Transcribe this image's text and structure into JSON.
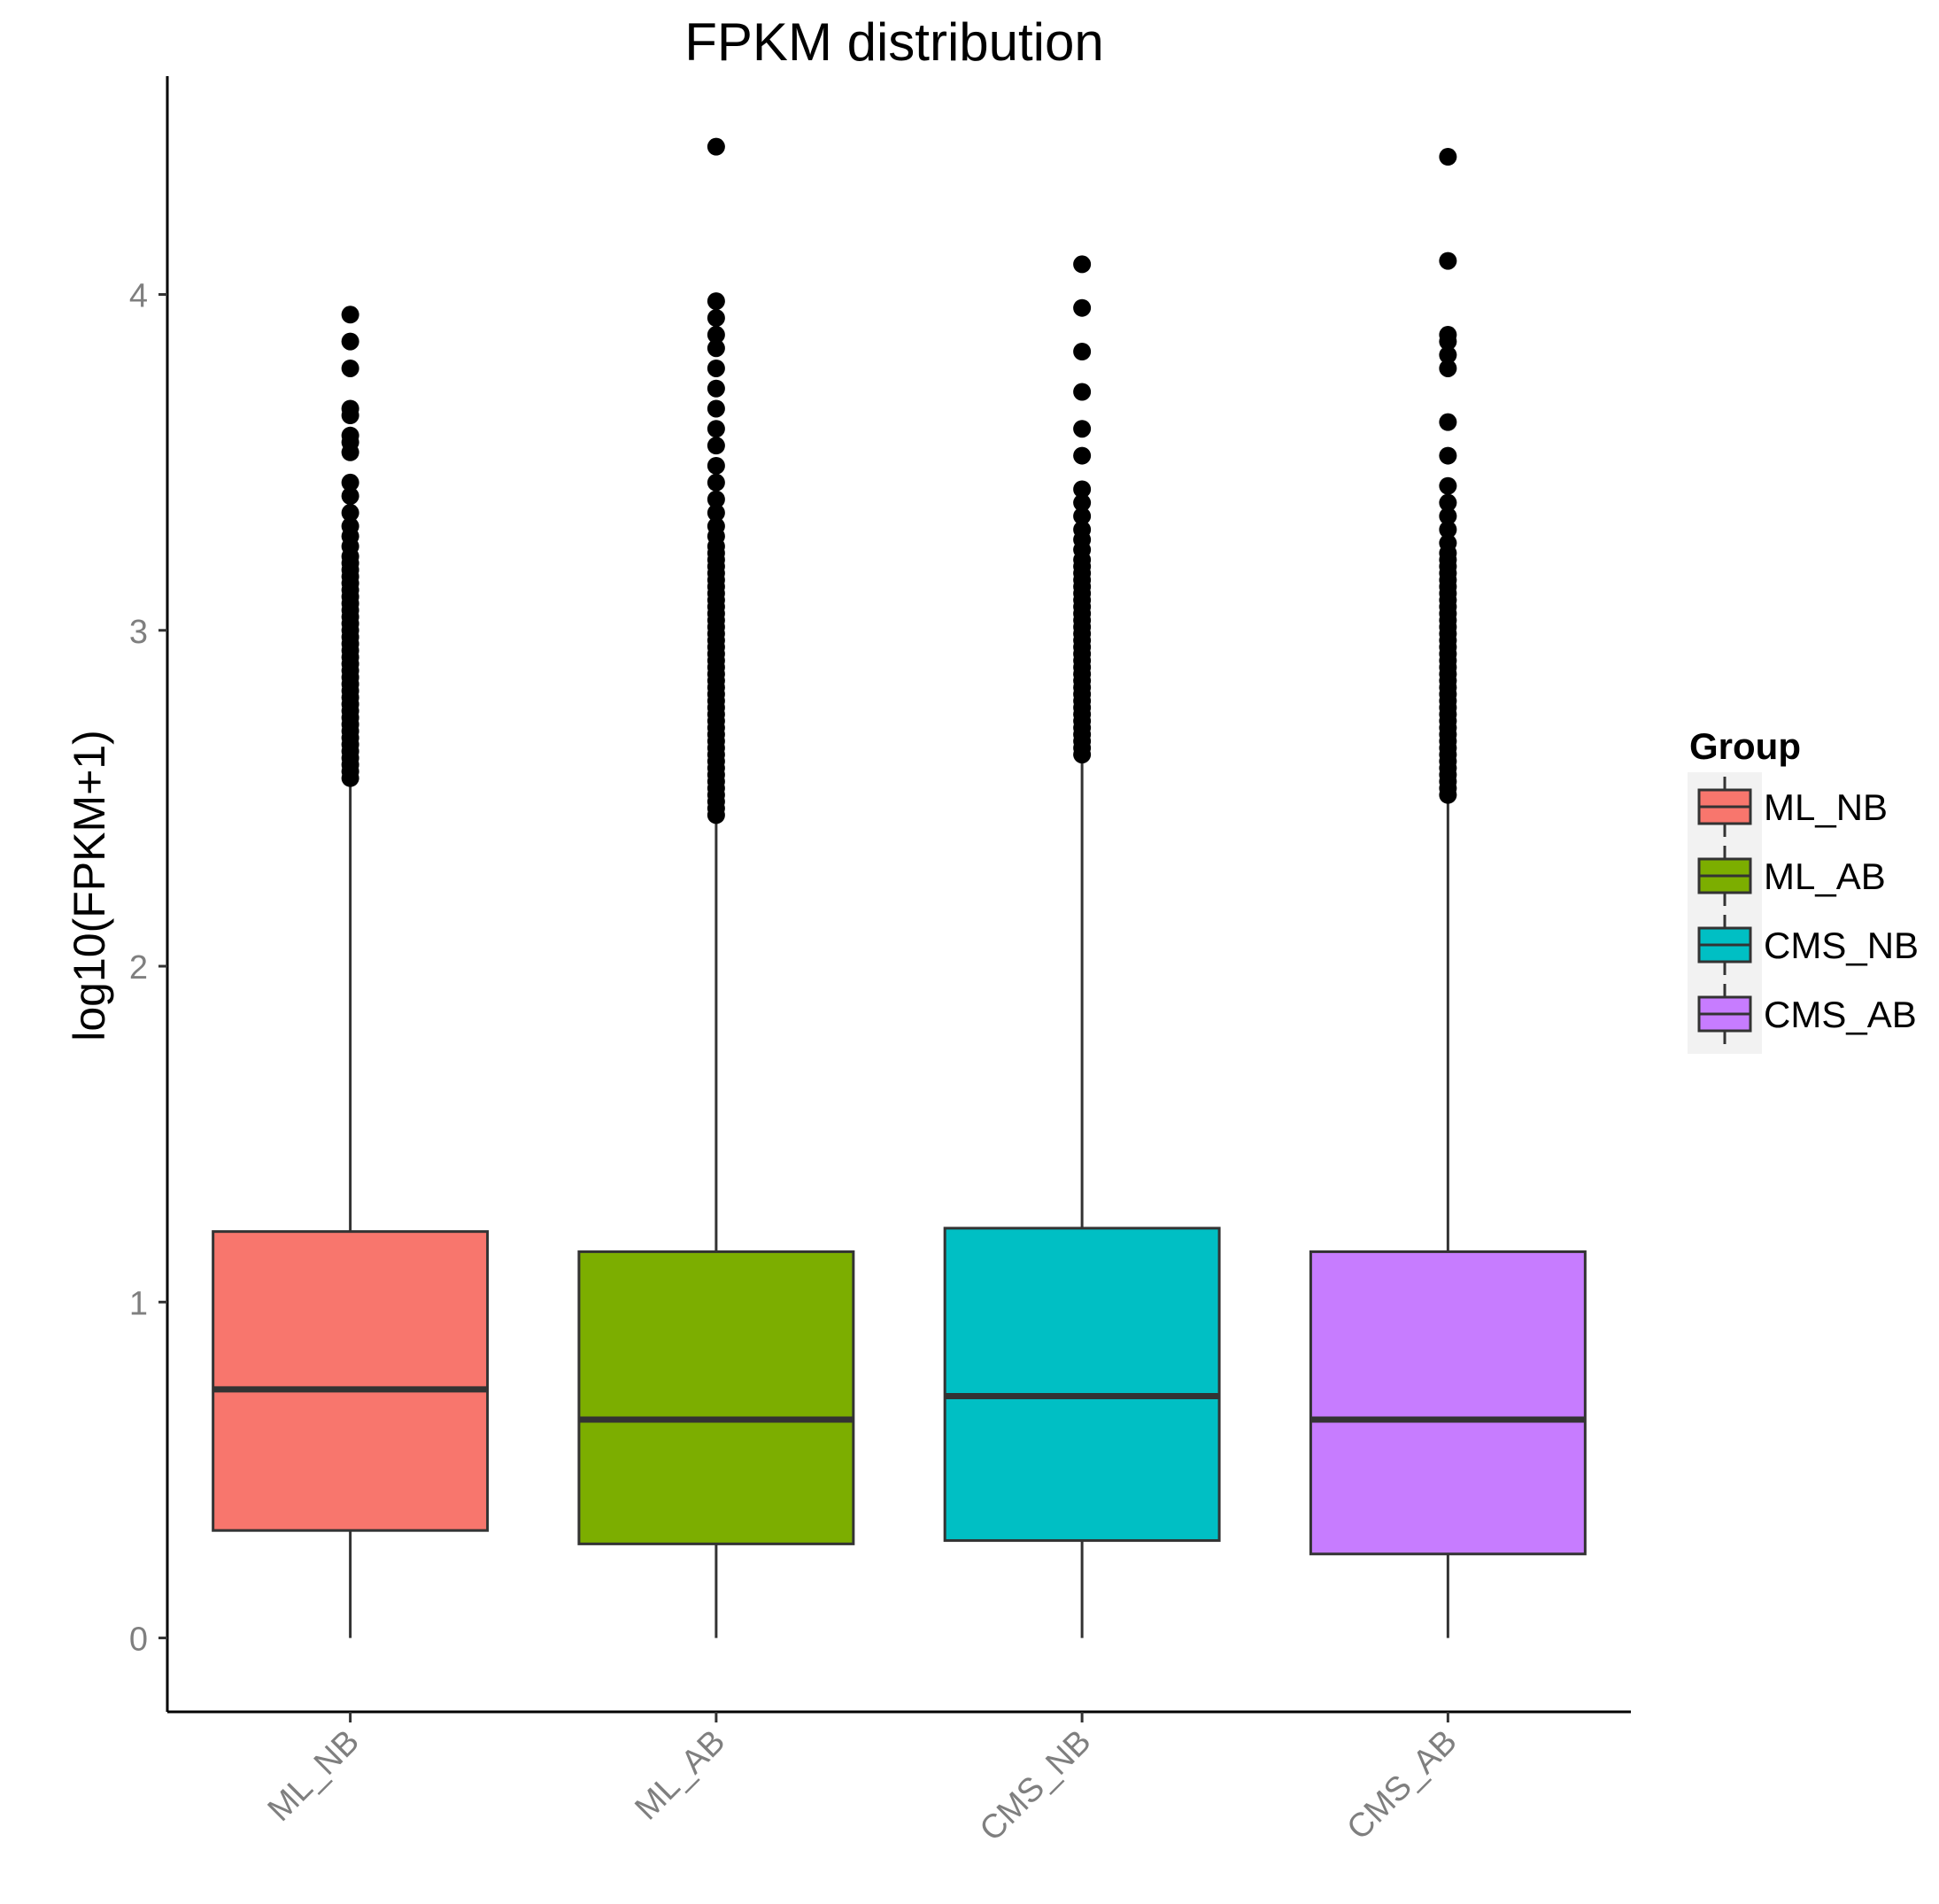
{
  "chart_data": {
    "type": "boxplot",
    "title": "FPKM distribution",
    "xlabel": "",
    "ylabel": "log10(FPKM+1)",
    "ylim": [
      -0.22,
      4.65
    ],
    "yticks": [
      0,
      1,
      2,
      3,
      4
    ],
    "ytick_labels": [
      "0",
      "1",
      "2",
      "3",
      "4"
    ],
    "grid": false,
    "legend": {
      "title": "Group",
      "placement": "right",
      "entries": [
        "ML_NB",
        "ML_AB",
        "CMS_NB",
        "CMS_AB"
      ]
    },
    "categories": [
      "ML_NB",
      "ML_AB",
      "CMS_NB",
      "CMS_AB"
    ],
    "colors": [
      "#f8766d",
      "#7cae00",
      "#00bfc4",
      "#c77cff"
    ],
    "series": [
      {
        "name": "ML_NB",
        "whisker_low": 0.0,
        "q1": 0.32,
        "median": 0.74,
        "q3": 1.21,
        "whisker_high": 2.55,
        "outliers": [
          2.56,
          2.58,
          2.6,
          2.62,
          2.64,
          2.66,
          2.68,
          2.7,
          2.72,
          2.74,
          2.76,
          2.78,
          2.8,
          2.82,
          2.84,
          2.86,
          2.88,
          2.9,
          2.92,
          2.94,
          2.96,
          2.98,
          3.0,
          3.02,
          3.04,
          3.06,
          3.08,
          3.1,
          3.12,
          3.14,
          3.16,
          3.18,
          3.2,
          3.22,
          3.25,
          3.28,
          3.31,
          3.35,
          3.4,
          3.44,
          3.53,
          3.56,
          3.58,
          3.64,
          3.66,
          3.78,
          3.86,
          3.94
        ]
      },
      {
        "name": "ML_AB",
        "whisker_low": 0.0,
        "q1": 0.28,
        "median": 0.65,
        "q3": 1.15,
        "whisker_high": 2.44,
        "outliers": [
          2.45,
          2.47,
          2.49,
          2.51,
          2.53,
          2.55,
          2.57,
          2.59,
          2.61,
          2.63,
          2.65,
          2.67,
          2.69,
          2.71,
          2.73,
          2.75,
          2.77,
          2.79,
          2.81,
          2.83,
          2.85,
          2.87,
          2.89,
          2.91,
          2.93,
          2.95,
          2.97,
          2.99,
          3.01,
          3.03,
          3.05,
          3.07,
          3.09,
          3.11,
          3.13,
          3.15,
          3.17,
          3.19,
          3.21,
          3.23,
          3.25,
          3.28,
          3.31,
          3.35,
          3.39,
          3.44,
          3.49,
          3.55,
          3.6,
          3.66,
          3.72,
          3.78,
          3.84,
          3.88,
          3.93,
          3.98,
          4.44
        ]
      },
      {
        "name": "CMS_NB",
        "whisker_low": 0.0,
        "q1": 0.29,
        "median": 0.72,
        "q3": 1.22,
        "whisker_high": 2.62,
        "outliers": [
          2.63,
          2.65,
          2.67,
          2.69,
          2.71,
          2.73,
          2.75,
          2.77,
          2.79,
          2.81,
          2.83,
          2.85,
          2.87,
          2.89,
          2.91,
          2.93,
          2.95,
          2.97,
          2.99,
          3.01,
          3.03,
          3.05,
          3.07,
          3.09,
          3.11,
          3.13,
          3.15,
          3.17,
          3.19,
          3.21,
          3.24,
          3.27,
          3.3,
          3.34,
          3.38,
          3.42,
          3.52,
          3.6,
          3.71,
          3.83,
          3.96,
          4.09
        ]
      },
      {
        "name": "CMS_AB",
        "whisker_low": 0.0,
        "q1": 0.25,
        "median": 0.65,
        "q3": 1.15,
        "whisker_high": 2.5,
        "outliers": [
          2.51,
          2.53,
          2.55,
          2.57,
          2.59,
          2.61,
          2.63,
          2.65,
          2.67,
          2.69,
          2.71,
          2.73,
          2.75,
          2.77,
          2.79,
          2.81,
          2.83,
          2.85,
          2.87,
          2.89,
          2.91,
          2.93,
          2.95,
          2.97,
          2.99,
          3.01,
          3.03,
          3.05,
          3.07,
          3.09,
          3.11,
          3.13,
          3.15,
          3.17,
          3.19,
          3.21,
          3.23,
          3.26,
          3.3,
          3.34,
          3.38,
          3.43,
          3.52,
          3.62,
          3.78,
          3.82,
          3.86,
          3.88,
          4.1,
          4.41
        ]
      }
    ]
  }
}
